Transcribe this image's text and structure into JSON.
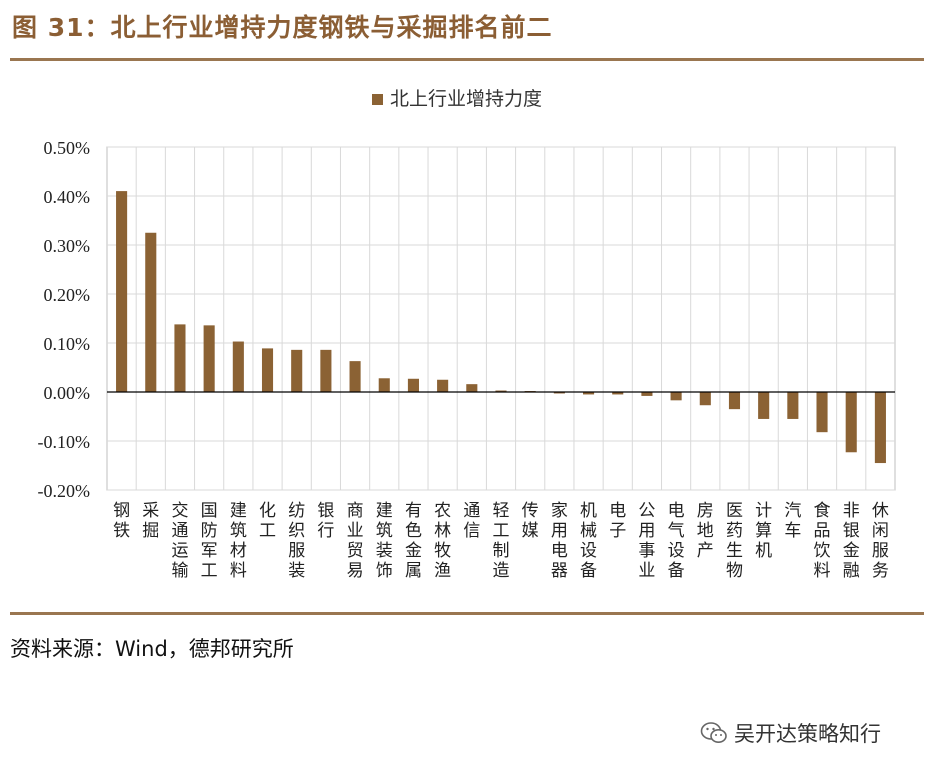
{
  "figure": {
    "title": "图 31：北上行业增持力度钢铁与采掘排名前二",
    "source": "资料来源：Wind，德邦研究所",
    "watermark": "吴开达策略知行"
  },
  "colors": {
    "accent": "#8b5e34",
    "bar": "#8b6234",
    "rule": "#9a7650"
  },
  "chart_data": {
    "type": "bar",
    "title": "",
    "xlabel": "",
    "ylabel": "",
    "legend": "北上行业增持力度",
    "legend_position": "top-center",
    "grid": true,
    "ylim": [
      -0.2,
      0.5
    ],
    "yticks": [
      0.5,
      0.4,
      0.3,
      0.2,
      0.1,
      0.0,
      -0.1,
      -0.2
    ],
    "ytick_labels": [
      "0.50%",
      "0.40%",
      "0.30%",
      "0.20%",
      "0.10%",
      "0.00%",
      "-0.10%",
      "-0.20%"
    ],
    "categories": [
      "钢铁",
      "采掘",
      "交通运输",
      "国防军工",
      "建筑材料",
      "化工",
      "纺织服装",
      "银行",
      "商业贸易",
      "建筑装饰",
      "有色金属",
      "农林牧渔",
      "通信",
      "轻工制造",
      "传媒",
      "家用电器",
      "机械设备",
      "电子",
      "公用事业",
      "电气设备",
      "房地产",
      "医药生物",
      "计算机",
      "汽车",
      "食品饮料",
      "非银金融",
      "休闲服务"
    ],
    "values": [
      0.41,
      0.325,
      0.138,
      0.136,
      0.103,
      0.089,
      0.086,
      0.086,
      0.063,
      0.028,
      0.027,
      0.025,
      0.016,
      0.003,
      0.002,
      -0.003,
      -0.005,
      -0.005,
      -0.008,
      -0.017,
      -0.027,
      -0.035,
      -0.055,
      -0.055,
      -0.082,
      -0.123,
      -0.145
    ]
  }
}
